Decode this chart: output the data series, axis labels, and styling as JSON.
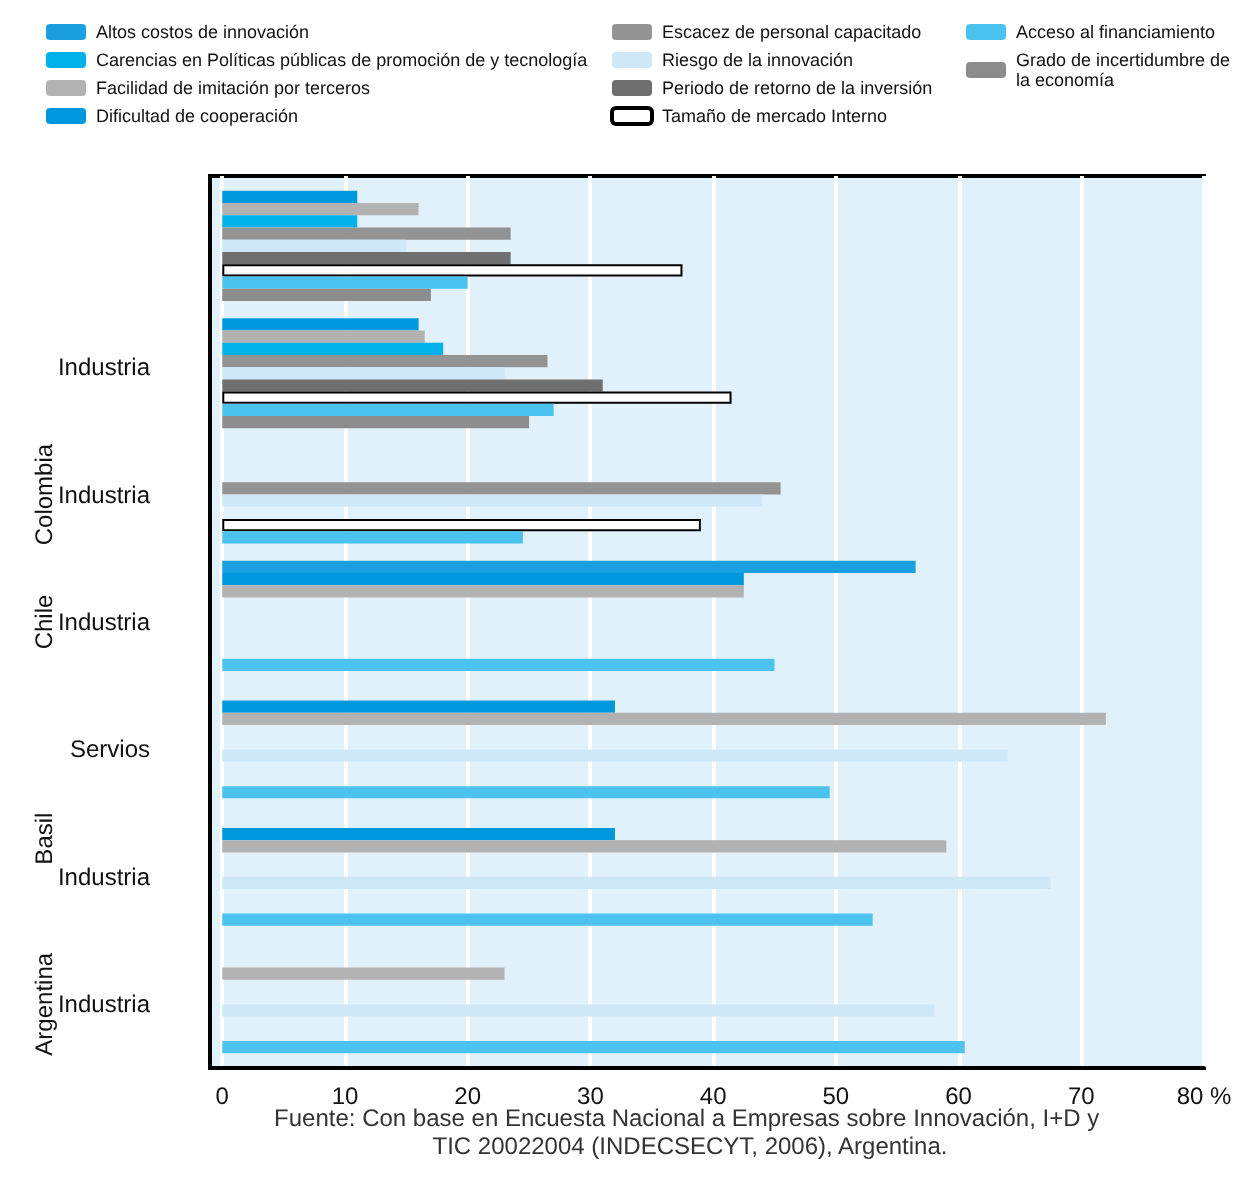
{
  "chart_data": {
    "type": "bar",
    "orientation": "horizontal",
    "categories": [
      null,
      "Industria",
      "Industria",
      "Industria",
      "Servios",
      "Industria",
      "Industria"
    ],
    "series": [
      {
        "name": "Altos costos de innovación",
        "color": "#1a9fe0",
        "values": [
          null,
          null,
          null,
          56.5,
          null,
          null,
          null
        ]
      },
      {
        "name": "Dificultad de cooperación",
        "color": "#0098dc",
        "values": [
          11,
          16,
          null,
          42.5,
          32,
          32,
          null
        ]
      },
      {
        "name": "Facilidad de imitación por terceros",
        "color": "#b2b2b2",
        "values": [
          16,
          16.5,
          null,
          42.5,
          72,
          59,
          23
        ]
      },
      {
        "name": "Carencias en Políticas públicas de promoción de y tecnología",
        "color": "#00b1ea",
        "values": [
          11,
          18,
          null,
          null,
          null,
          null,
          null
        ]
      },
      {
        "name": "Escacez de personal capacitado",
        "color": "#939393",
        "values": [
          23.5,
          26.5,
          45.5,
          null,
          null,
          null,
          null
        ]
      },
      {
        "name": "Riesgo de la innovación",
        "color": "#cfe8f8",
        "values": [
          15,
          23,
          44,
          null,
          64,
          67.5,
          58
        ]
      },
      {
        "name": "Periodo de retorno de la inversión",
        "color": "#6f6f6f",
        "values": [
          23.5,
          31,
          null,
          null,
          null,
          null,
          null
        ]
      },
      {
        "name": "Tamaño de mercado Interno",
        "color": "#ffffff",
        "values": [
          37.5,
          41.5,
          39,
          null,
          null,
          null,
          null
        ]
      },
      {
        "name": "Acceso al financiamiento",
        "color": "#4cc3ef",
        "values": [
          20,
          27,
          24.5,
          45,
          49.5,
          53,
          60.5
        ]
      },
      {
        "name": "Grado de incertidumbre de la economía",
        "color": "#8c8c8c",
        "values": [
          17,
          25,
          null,
          null,
          null,
          null,
          null
        ]
      }
    ],
    "xlim": [
      -1,
      80
    ],
    "xticks": [
      0,
      10,
      20,
      30,
      40,
      50,
      60,
      70,
      {
        "value": 80,
        "label": "80 %"
      }
    ],
    "grid": "x",
    "legend": "top",
    "annotations": [
      "Colombia",
      "Chile",
      "Basil",
      "Argentina",
      "Fuente: Con base en Encuesta Nacional a Empresas sobre Innovación, I+D y TIC 20022004 (INDECSECYT, 2006), Argentina."
    ]
  }
}
